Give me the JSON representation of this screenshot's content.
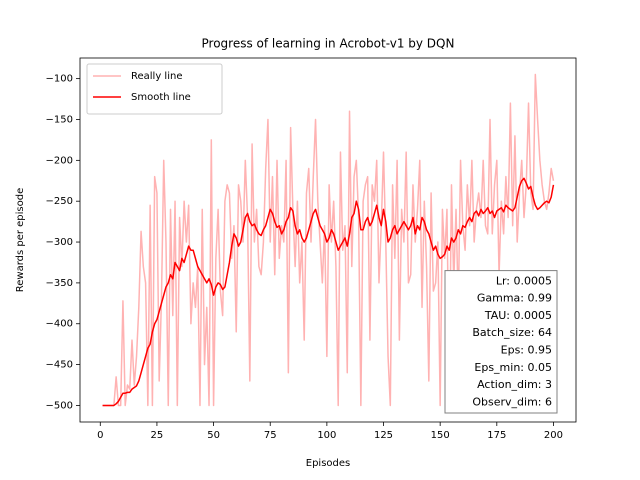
{
  "chart_data": {
    "type": "line",
    "title": "Progress of learning in Acrobot-v1 by DQN",
    "x_label": "Episodes",
    "y_label": "Rewards per episode",
    "x": [
      1,
      2,
      3,
      4,
      5,
      6,
      7,
      8,
      9,
      10,
      11,
      12,
      13,
      14,
      15,
      16,
      17,
      18,
      19,
      20,
      21,
      22,
      23,
      24,
      25,
      26,
      27,
      28,
      29,
      30,
      31,
      32,
      33,
      34,
      35,
      36,
      37,
      38,
      39,
      40,
      41,
      42,
      43,
      44,
      45,
      46,
      47,
      48,
      49,
      50,
      51,
      52,
      53,
      54,
      55,
      56,
      57,
      58,
      59,
      60,
      61,
      62,
      63,
      64,
      65,
      66,
      67,
      68,
      69,
      70,
      71,
      72,
      73,
      74,
      75,
      76,
      77,
      78,
      79,
      80,
      81,
      82,
      83,
      84,
      85,
      86,
      87,
      88,
      89,
      90,
      91,
      92,
      93,
      94,
      95,
      96,
      97,
      98,
      99,
      100,
      101,
      102,
      103,
      104,
      105,
      106,
      107,
      108,
      109,
      110,
      111,
      112,
      113,
      114,
      115,
      116,
      117,
      118,
      119,
      120,
      121,
      122,
      123,
      124,
      125,
      126,
      127,
      128,
      129,
      130,
      131,
      132,
      133,
      134,
      135,
      136,
      137,
      138,
      139,
      140,
      141,
      142,
      143,
      144,
      145,
      146,
      147,
      148,
      149,
      150,
      151,
      152,
      153,
      154,
      155,
      156,
      157,
      158,
      159,
      160,
      161,
      162,
      163,
      164,
      165,
      166,
      167,
      168,
      169,
      170,
      171,
      172,
      173,
      174,
      175,
      176,
      177,
      178,
      179,
      180,
      181,
      182,
      183,
      184,
      185,
      186,
      187,
      188,
      189,
      190,
      191,
      192,
      193,
      194,
      195,
      196,
      197,
      198,
      199,
      200
    ],
    "series": [
      {
        "name": "Really line",
        "color": "#ffb2b2",
        "values": [
          -500,
          -500,
          -500,
          -500,
          -500,
          -500,
          -465,
          -500,
          -500,
          -372,
          -500,
          -475,
          -480,
          -420,
          -475,
          -440,
          -380,
          -287,
          -330,
          -350,
          -500,
          -255,
          -500,
          -220,
          -240,
          -470,
          -370,
          -200,
          -300,
          -500,
          -260,
          -390,
          -250,
          -500,
          -270,
          -330,
          -250,
          -300,
          -255,
          -400,
          -350,
          -380,
          -330,
          -500,
          -260,
          -450,
          -380,
          -500,
          -175,
          -500,
          -320,
          -260,
          -360,
          -390,
          -250,
          -230,
          -240,
          -320,
          -280,
          -410,
          -230,
          -250,
          -300,
          -200,
          -270,
          -470,
          -180,
          -300,
          -260,
          -330,
          -340,
          -300,
          -210,
          -150,
          -300,
          -220,
          -340,
          -200,
          -320,
          -280,
          -300,
          -200,
          -460,
          -160,
          -260,
          -330,
          -250,
          -350,
          -300,
          -420,
          -240,
          -210,
          -300,
          -220,
          -150,
          -250,
          -300,
          -350,
          -280,
          -440,
          -230,
          -300,
          -250,
          -330,
          -500,
          -190,
          -310,
          -280,
          -460,
          -140,
          -330,
          -220,
          -200,
          -270,
          -500,
          -250,
          -230,
          -220,
          -420,
          -230,
          -250,
          -200,
          -350,
          -280,
          -190,
          -300,
          -440,
          -500,
          -230,
          -320,
          -200,
          -420,
          -260,
          -300,
          -190,
          -350,
          -340,
          -230,
          -300,
          -260,
          -200,
          -380,
          -250,
          -330,
          -470,
          -240,
          -360,
          -350,
          -300,
          -500,
          -260,
          -320,
          -260,
          -480,
          -230,
          -350,
          -260,
          -380,
          -200,
          -280,
          -310,
          -230,
          -280,
          -200,
          -300,
          -260,
          -240,
          -270,
          -200,
          -280,
          -290,
          -150,
          -290,
          -230,
          -200,
          -340,
          -250,
          -290,
          -220,
          -270,
          -130,
          -280,
          -170,
          -300,
          -240,
          -200,
          -270,
          -230,
          -130,
          -240,
          -260,
          -95,
          -150,
          -200,
          -230,
          -250,
          -260,
          -240,
          -210,
          -225
        ]
      },
      {
        "name": "Smooth line",
        "color": "#ff0000",
        "values": [
          -500,
          -500,
          -500,
          -500,
          -500,
          -500,
          -498,
          -495,
          -490,
          -485,
          -485,
          -484,
          -484,
          -480,
          -478,
          -476,
          -470,
          -460,
          -450,
          -440,
          -430,
          -425,
          -410,
          -400,
          -395,
          -385,
          -375,
          -365,
          -355,
          -350,
          -340,
          -345,
          -325,
          -330,
          -335,
          -320,
          -325,
          -315,
          -305,
          -310,
          -310,
          -320,
          -330,
          -335,
          -340,
          -345,
          -350,
          -345,
          -352,
          -365,
          -355,
          -350,
          -352,
          -358,
          -355,
          -340,
          -325,
          -305,
          -290,
          -295,
          -305,
          -300,
          -285,
          -270,
          -265,
          -275,
          -280,
          -278,
          -285,
          -290,
          -292,
          -285,
          -280,
          -270,
          -260,
          -265,
          -275,
          -282,
          -280,
          -290,
          -285,
          -275,
          -270,
          -258,
          -262,
          -280,
          -290,
          -285,
          -295,
          -300,
          -295,
          -285,
          -275,
          -265,
          -260,
          -270,
          -280,
          -285,
          -290,
          -300,
          -295,
          -285,
          -290,
          -300,
          -310,
          -305,
          -300,
          -295,
          -305,
          -290,
          -270,
          -265,
          -250,
          -260,
          -285,
          -285,
          -275,
          -270,
          -280,
          -275,
          -265,
          -255,
          -270,
          -280,
          -260,
          -275,
          -300,
          -295,
          -285,
          -280,
          -290,
          -285,
          -280,
          -275,
          -280,
          -285,
          -280,
          -270,
          -290,
          -280,
          -285,
          -270,
          -275,
          -285,
          -290,
          -300,
          -310,
          -305,
          -315,
          -320,
          -318,
          -315,
          -305,
          -310,
          -295,
          -300,
          -295,
          -285,
          -290,
          -280,
          -282,
          -275,
          -270,
          -275,
          -265,
          -262,
          -268,
          -260,
          -265,
          -262,
          -258,
          -265,
          -262,
          -270,
          -262,
          -260,
          -258,
          -263,
          -255,
          -258,
          -260,
          -262,
          -258,
          -245,
          -232,
          -225,
          -222,
          -228,
          -235,
          -232,
          -245,
          -255,
          -260,
          -258,
          -255,
          -252,
          -250,
          -252,
          -245,
          -230
        ]
      }
    ],
    "xlim": [
      -8.95,
      209.95
    ],
    "ylim": [
      -520.25,
      -74.75
    ],
    "xticks": [
      0,
      25,
      50,
      75,
      100,
      125,
      150,
      175,
      200
    ],
    "yticks": [
      {
        "value": -500,
        "label": "−500"
      },
      {
        "value": -450,
        "label": "−450"
      },
      {
        "value": -400,
        "label": "−400"
      },
      {
        "value": -350,
        "label": "−350"
      },
      {
        "value": -300,
        "label": "−300"
      },
      {
        "value": -250,
        "label": "−250"
      },
      {
        "value": -200,
        "label": "−200"
      },
      {
        "value": -150,
        "label": "−150"
      },
      {
        "value": -100,
        "label": "−100"
      }
    ],
    "legend": "upper left",
    "annotations": [
      "Lr: 0.0005",
      "Gamma: 0.99",
      "TAU: 0.0005",
      "Batch_size: 64",
      "Eps: 0.95",
      "Eps_min: 0.05",
      "Action_dim: 3",
      "Observ_dim: 6"
    ]
  }
}
